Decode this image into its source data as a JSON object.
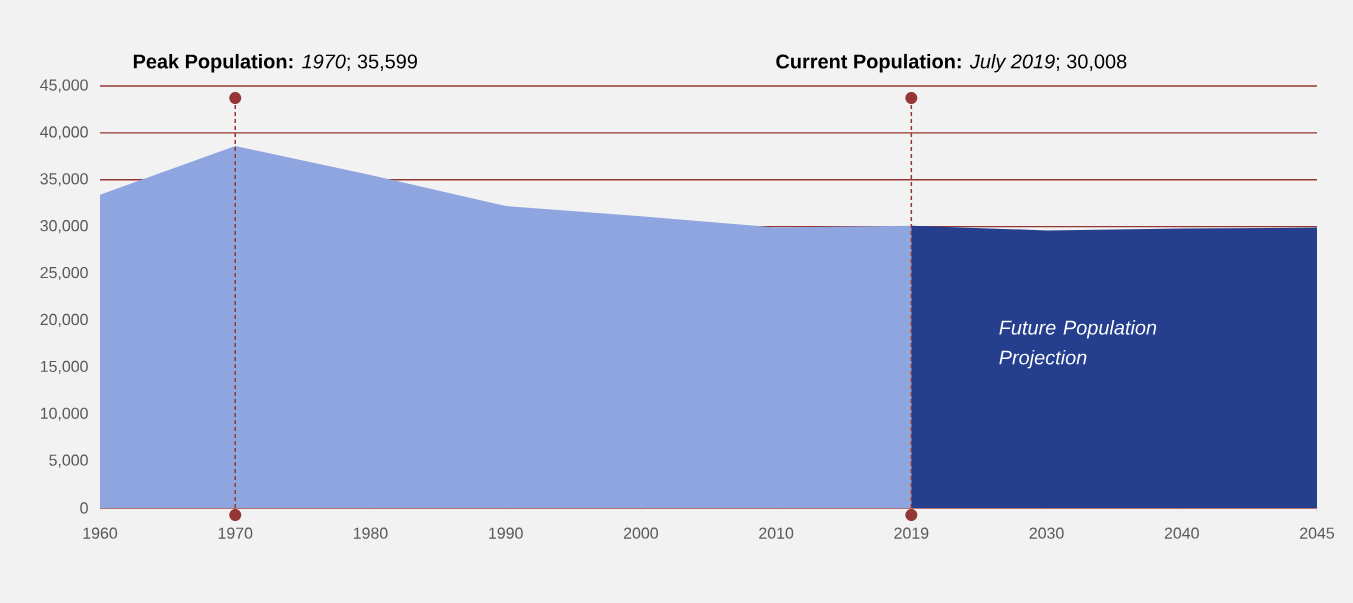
{
  "chart_data": {
    "type": "area",
    "categories": [
      "1960",
      "1970",
      "1980",
      "1990",
      "2000",
      "2010",
      "2019",
      "2030",
      "2040",
      "2045"
    ],
    "series": [
      {
        "color": "#8ea5e0",
        "values": [
          33400,
          38600,
          35500,
          32200,
          31100,
          29900,
          30100,
          null,
          null,
          null
        ]
      },
      {
        "name": "Future Population Projection",
        "color": "#253f8e",
        "values": [
          null,
          null,
          null,
          null,
          null,
          null,
          30100,
          29600,
          29800,
          29900
        ]
      }
    ],
    "ylim": [
      0,
      45000
    ],
    "yticks": [
      0,
      {
        "value": 5000,
        "label": "5,000"
      },
      {
        "value": 10000,
        "label": "10,000"
      },
      {
        "value": 15000,
        "label": "15,000"
      },
      {
        "value": 20000,
        "label": "20,000"
      },
      {
        "value": 25000,
        "label": "25,000"
      },
      {
        "value": 30000,
        "label": "30,000"
      },
      {
        "value": 35000,
        "label": "35,000"
      },
      {
        "value": 40000,
        "label": "40,000"
      },
      {
        "value": 45000,
        "label": "45,000"
      }
    ],
    "grid": "y",
    "ref_lines": [
      {
        "axis": "x",
        "value": "1970",
        "label": "**Peak Population:** *1970*; 35,599",
        "color": "#953735",
        "line_style": "dashed"
      },
      {
        "axis": "x",
        "value": "2019",
        "label": "**Current Population:** *July 2019*; 30,008",
        "color": "#953735",
        "line_style": "dashed"
      }
    ]
  }
}
